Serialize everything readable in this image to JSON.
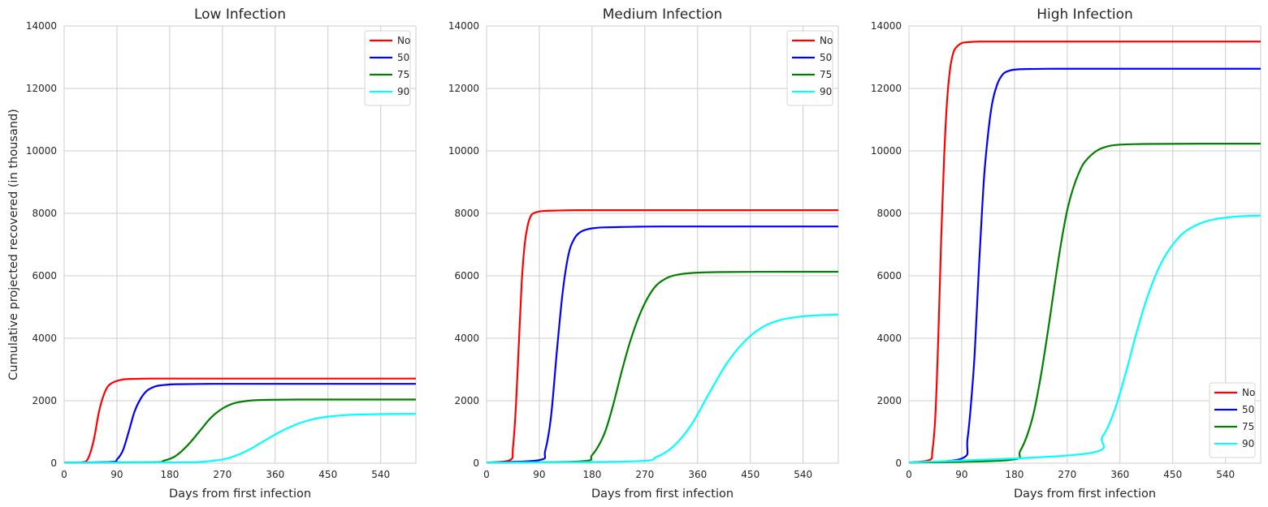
{
  "chart_data": [
    {
      "type": "line",
      "title": "Low Infection",
      "xlabel": "Days from first infection",
      "ylabel": "Cumulative projected recovered (in thousand)",
      "xlim": [
        0,
        600
      ],
      "ylim": [
        0,
        14000
      ],
      "x_ticks": [
        0,
        90,
        180,
        270,
        360,
        450,
        540
      ],
      "y_ticks": [
        0,
        2000,
        4000,
        6000,
        8000,
        10000,
        12000,
        14000
      ],
      "grid": true,
      "legend": "upper right",
      "series": [
        {
          "name": "No",
          "color": "#ff0000",
          "x": [
            0,
            30,
            40,
            50,
            60,
            70,
            80,
            100,
            120,
            150,
            200,
            300,
            400,
            500,
            600
          ],
          "y": [
            20,
            30,
            120,
            700,
            1700,
            2300,
            2550,
            2680,
            2700,
            2710,
            2710,
            2710,
            2710,
            2710,
            2710
          ]
        },
        {
          "name": "50",
          "color": "#0000ff",
          "x": [
            0,
            80,
            90,
            100,
            110,
            120,
            130,
            140,
            150,
            160,
            180,
            200,
            250,
            300,
            400,
            500,
            600
          ],
          "y": [
            20,
            40,
            120,
            400,
            1000,
            1650,
            2050,
            2300,
            2420,
            2480,
            2520,
            2530,
            2540,
            2540,
            2540,
            2540,
            2540
          ]
        },
        {
          "name": "75",
          "color": "#008000",
          "x": [
            0,
            150,
            170,
            190,
            210,
            230,
            250,
            270,
            290,
            310,
            330,
            350,
            400,
            450,
            500,
            600
          ],
          "y": [
            20,
            30,
            80,
            230,
            560,
            1000,
            1450,
            1750,
            1920,
            1990,
            2020,
            2030,
            2040,
            2040,
            2040,
            2040
          ]
        },
        {
          "name": "90",
          "color": "#00ffff",
          "x": [
            0,
            200,
            250,
            280,
            310,
            340,
            370,
            400,
            430,
            460,
            490,
            520,
            550,
            600
          ],
          "y": [
            20,
            25,
            70,
            160,
            380,
            700,
            1020,
            1270,
            1430,
            1510,
            1550,
            1565,
            1575,
            1580
          ]
        }
      ]
    },
    {
      "type": "line",
      "title": "Medium Infection",
      "xlabel": "Days from first infection",
      "ylabel": "",
      "xlim": [
        0,
        600
      ],
      "ylim": [
        0,
        14000
      ],
      "x_ticks": [
        0,
        90,
        180,
        270,
        360,
        450,
        540
      ],
      "y_ticks": [
        0,
        2000,
        4000,
        6000,
        8000,
        10000,
        12000,
        14000
      ],
      "grid": true,
      "legend": "upper right",
      "series": [
        {
          "name": "No",
          "color": "#ff0000",
          "x": [
            0,
            40,
            45,
            50,
            55,
            60,
            65,
            70,
            75,
            80,
            90,
            100,
            120,
            150,
            200,
            300,
            400,
            500,
            600
          ],
          "y": [
            20,
            100,
            500,
            1800,
            3800,
            5800,
            7000,
            7600,
            7900,
            8000,
            8060,
            8080,
            8090,
            8100,
            8100,
            8100,
            8100,
            8100,
            8100
          ]
        },
        {
          "name": "50",
          "color": "#0000ff",
          "x": [
            0,
            90,
            100,
            110,
            120,
            130,
            140,
            150,
            160,
            170,
            180,
            200,
            250,
            300,
            400,
            500,
            600
          ],
          "y": [
            20,
            100,
            400,
            1500,
            3600,
            5500,
            6700,
            7200,
            7400,
            7480,
            7520,
            7550,
            7570,
            7580,
            7580,
            7580,
            7580
          ]
        },
        {
          "name": "75",
          "color": "#008000",
          "x": [
            0,
            160,
            180,
            200,
            215,
            230,
            245,
            260,
            275,
            290,
            310,
            330,
            360,
            400,
            500,
            600
          ],
          "y": [
            20,
            60,
            260,
            900,
            1800,
            2900,
            3900,
            4700,
            5300,
            5700,
            5950,
            6050,
            6100,
            6120,
            6130,
            6130
          ]
        },
        {
          "name": "90",
          "color": "#00ffff",
          "x": [
            0,
            250,
            290,
            320,
            350,
            380,
            410,
            440,
            470,
            500,
            530,
            560,
            600
          ],
          "y": [
            20,
            60,
            200,
            560,
            1250,
            2250,
            3200,
            3900,
            4350,
            4580,
            4680,
            4730,
            4760
          ]
        }
      ]
    },
    {
      "type": "line",
      "title": "High Infection",
      "xlabel": "Days from first infection",
      "ylabel": "",
      "xlim": [
        0,
        600
      ],
      "ylim": [
        0,
        14000
      ],
      "x_ticks": [
        0,
        90,
        180,
        270,
        360,
        450,
        540
      ],
      "y_ticks": [
        0,
        2000,
        4000,
        6000,
        8000,
        10000,
        12000,
        14000
      ],
      "grid": true,
      "legend": "lower right",
      "series": [
        {
          "name": "No",
          "color": "#ff0000",
          "x": [
            0,
            35,
            40,
            45,
            50,
            55,
            60,
            65,
            70,
            75,
            80,
            90,
            100,
            120,
            150,
            200,
            300,
            400,
            500,
            600
          ],
          "y": [
            20,
            100,
            400,
            1500,
            4000,
            7200,
            9800,
            11600,
            12600,
            13100,
            13300,
            13450,
            13480,
            13500,
            13500,
            13500,
            13500,
            13500,
            13500,
            13500
          ]
        },
        {
          "name": "50",
          "color": "#0000ff",
          "x": [
            0,
            90,
            100,
            110,
            115,
            120,
            125,
            130,
            140,
            150,
            160,
            170,
            180,
            200,
            250,
            300,
            400,
            500,
            600
          ],
          "y": [
            20,
            150,
            800,
            2900,
            4600,
            6500,
            8200,
            9600,
            11300,
            12100,
            12450,
            12560,
            12600,
            12620,
            12630,
            12630,
            12630,
            12630,
            12630
          ]
        },
        {
          "name": "75",
          "color": "#008000",
          "x": [
            0,
            170,
            190,
            210,
            225,
            240,
            250,
            260,
            270,
            280,
            290,
            300,
            320,
            340,
            360,
            400,
            500,
            600
          ],
          "y": [
            20,
            100,
            400,
            1400,
            2800,
            4600,
            5900,
            7100,
            8100,
            8800,
            9300,
            9650,
            10000,
            10150,
            10200,
            10220,
            10230,
            10230
          ]
        },
        {
          "name": "90",
          "color": "#00ffff",
          "x": [
            0,
            300,
            330,
            350,
            370,
            390,
            410,
            430,
            450,
            470,
            490,
            510,
            530,
            560,
            600
          ],
          "y": [
            20,
            300,
            850,
            1650,
            2900,
            4300,
            5500,
            6400,
            7000,
            7400,
            7620,
            7760,
            7840,
            7900,
            7930
          ]
        }
      ]
    }
  ]
}
